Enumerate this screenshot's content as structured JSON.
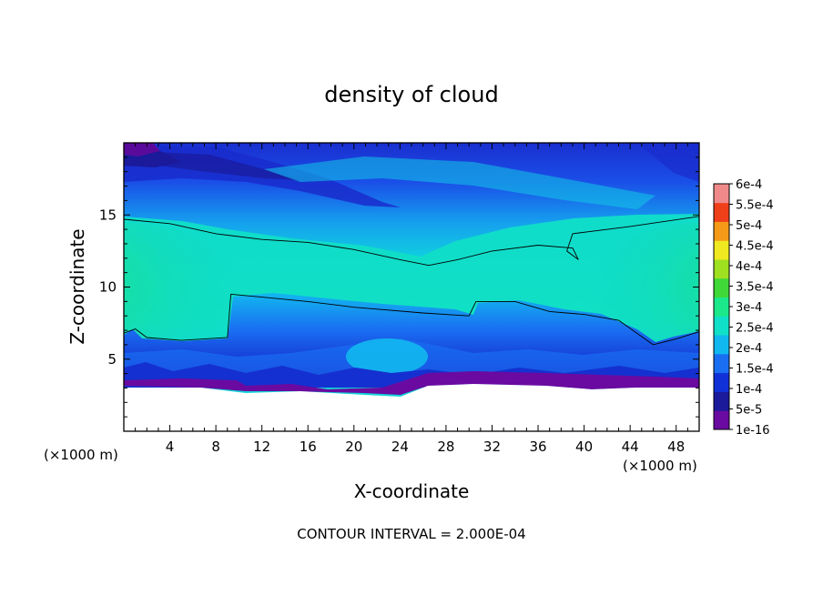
{
  "chart_data": {
    "type": "heatmap",
    "title": "density of cloud",
    "xlabel": "X-coordinate",
    "ylabel": "Z-coordinate",
    "x_unit_left": "(×1000 m)",
    "x_unit_right": "(×1000 m)",
    "xlim": [
      0,
      50
    ],
    "ylim": [
      0,
      20
    ],
    "xticks": [
      "4",
      "8",
      "12",
      "16",
      "20",
      "24",
      "28",
      "32",
      "36",
      "40",
      "44",
      "48"
    ],
    "yticks": [
      "5",
      "10",
      "15"
    ],
    "note": "CONTOUR INTERVAL = 2.000E-04",
    "colorbar": {
      "labels": [
        "1e-16",
        "5e-5",
        "1e-4",
        "1.5e-4",
        "2e-4",
        "2.5e-4",
        "3e-4",
        "3.5e-4",
        "4e-4",
        "4.5e-4",
        "5e-4",
        "5.5e-4",
        "6e-4"
      ],
      "colors": [
        "#6a0aa0",
        "#1a1a9a",
        "#1030d8",
        "#1a6ef2",
        "#10b8ef",
        "#10e0c8",
        "#1ae88a",
        "#40d838",
        "#9fe020",
        "#f0e820",
        "#f59a18",
        "#f0401a",
        "#f08a8a"
      ]
    },
    "contour_lines": [
      {
        "level": "2e-4",
        "points": [
          [
            0,
            14.7
          ],
          [
            4,
            14.4
          ],
          [
            8,
            13.7
          ],
          [
            12,
            13.3
          ],
          [
            16,
            13.1
          ],
          [
            20,
            12.6
          ],
          [
            24,
            11.9
          ],
          [
            26.5,
            11.5
          ],
          [
            29,
            11.9
          ],
          [
            32,
            12.5
          ],
          [
            36,
            12.9
          ],
          [
            39,
            12.7
          ],
          [
            39.5,
            11.9
          ],
          [
            38.5,
            12.5
          ],
          [
            39,
            13.7
          ],
          [
            44,
            14.2
          ],
          [
            50,
            14.9
          ]
        ]
      },
      {
        "level": "2e-4",
        "points": [
          [
            0,
            6.8
          ],
          [
            1,
            7.1
          ],
          [
            2,
            6.5
          ],
          [
            5,
            6.3
          ],
          [
            9,
            6.5
          ],
          [
            9.3,
            9.5
          ],
          [
            12,
            9.3
          ],
          [
            16,
            9.0
          ],
          [
            20,
            8.6
          ],
          [
            26,
            8.2
          ],
          [
            30,
            8.0
          ],
          [
            30.6,
            9.0
          ],
          [
            34,
            9.0
          ],
          [
            37,
            8.3
          ],
          [
            40,
            8.1
          ],
          [
            43,
            7.7
          ],
          [
            46,
            6.0
          ],
          [
            48,
            6.4
          ],
          [
            50,
            6.9
          ]
        ]
      }
    ]
  }
}
